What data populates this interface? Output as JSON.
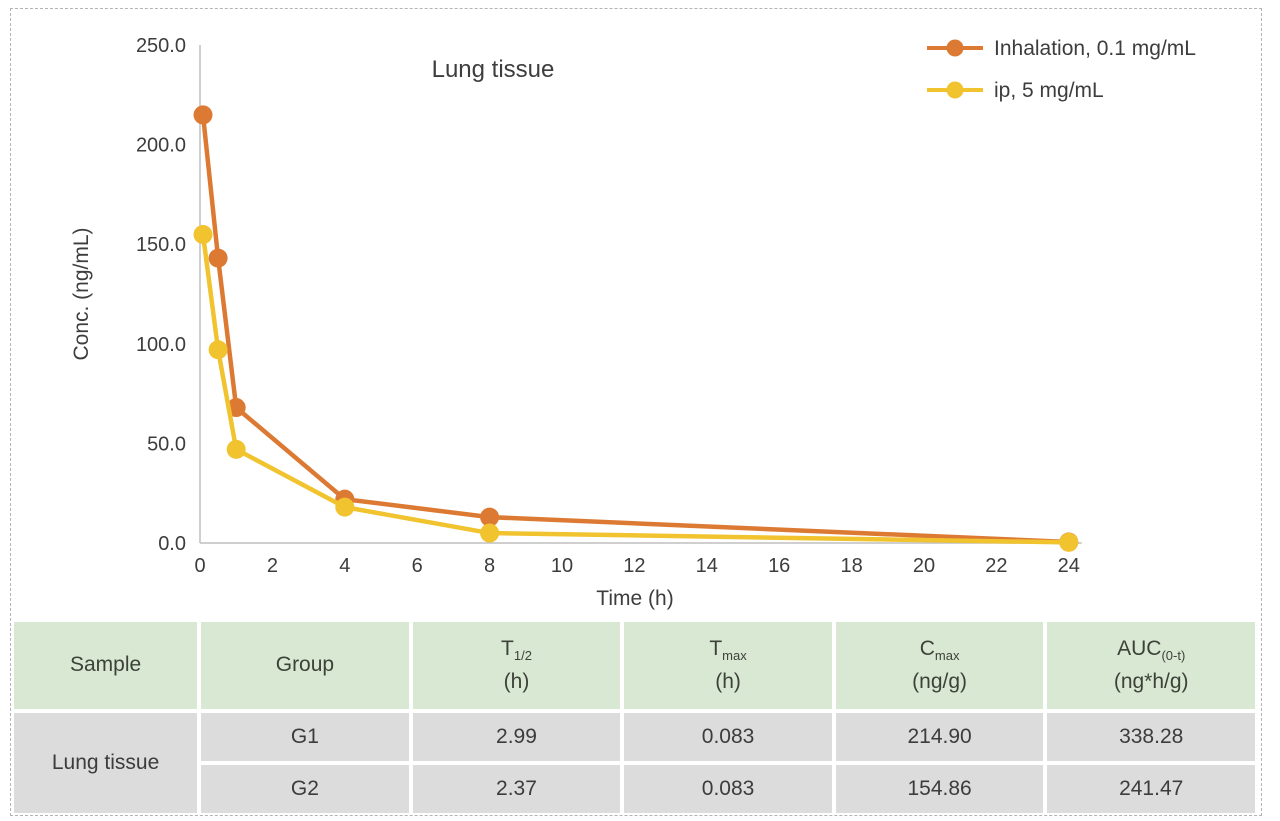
{
  "chart_data": {
    "type": "line",
    "title": "Lung tissue",
    "xlabel": "Time (h)",
    "ylabel": "Conc. (ng/mL)",
    "xlim": [
      0,
      24
    ],
    "ylim": [
      0,
      250
    ],
    "x_ticks": [
      0,
      2,
      4,
      6,
      8,
      10,
      12,
      14,
      16,
      18,
      20,
      22,
      24
    ],
    "y_ticks": [
      0,
      50,
      100,
      150,
      200,
      250
    ],
    "y_tick_decimals": 1,
    "grid": false,
    "legend_position": "top-right",
    "series": [
      {
        "name": "Inhalation, 0.1 mg/mL",
        "color": "#dc7a33",
        "x": [
          0.083,
          0.5,
          1,
          4,
          8,
          24
        ],
        "y": [
          214.9,
          143,
          68,
          22,
          13,
          0.5
        ]
      },
      {
        "name": "ip, 5 mg/mL",
        "color": "#f0c32f",
        "x": [
          0.083,
          0.5,
          1,
          4,
          8,
          24
        ],
        "y": [
          154.86,
          97,
          47,
          18,
          5,
          0.3
        ]
      }
    ],
    "axis_color": "#bfbfbf",
    "text_color": "#3d3d3d"
  },
  "table": {
    "headers": [
      {
        "main": "Sample",
        "sub": "",
        "unit": ""
      },
      {
        "main": "Group",
        "sub": "",
        "unit": ""
      },
      {
        "main": "T",
        "sub": "1/2",
        "unit": "(h)"
      },
      {
        "main": "T",
        "sub": "max",
        "unit": "(h)"
      },
      {
        "main": "C",
        "sub": "max",
        "unit": "(ng/g)"
      },
      {
        "main": "AUC",
        "sub": "(0-t)",
        "unit": "(ng*h/g)"
      }
    ],
    "sample_label": "Lung tissue",
    "rows": [
      {
        "group": "G1",
        "t_half": "2.99",
        "t_max": "0.083",
        "c_max": "214.90",
        "auc": "338.28"
      },
      {
        "group": "G2",
        "t_half": "2.37",
        "t_max": "0.083",
        "c_max": "154.86",
        "auc": "241.47"
      }
    ]
  }
}
